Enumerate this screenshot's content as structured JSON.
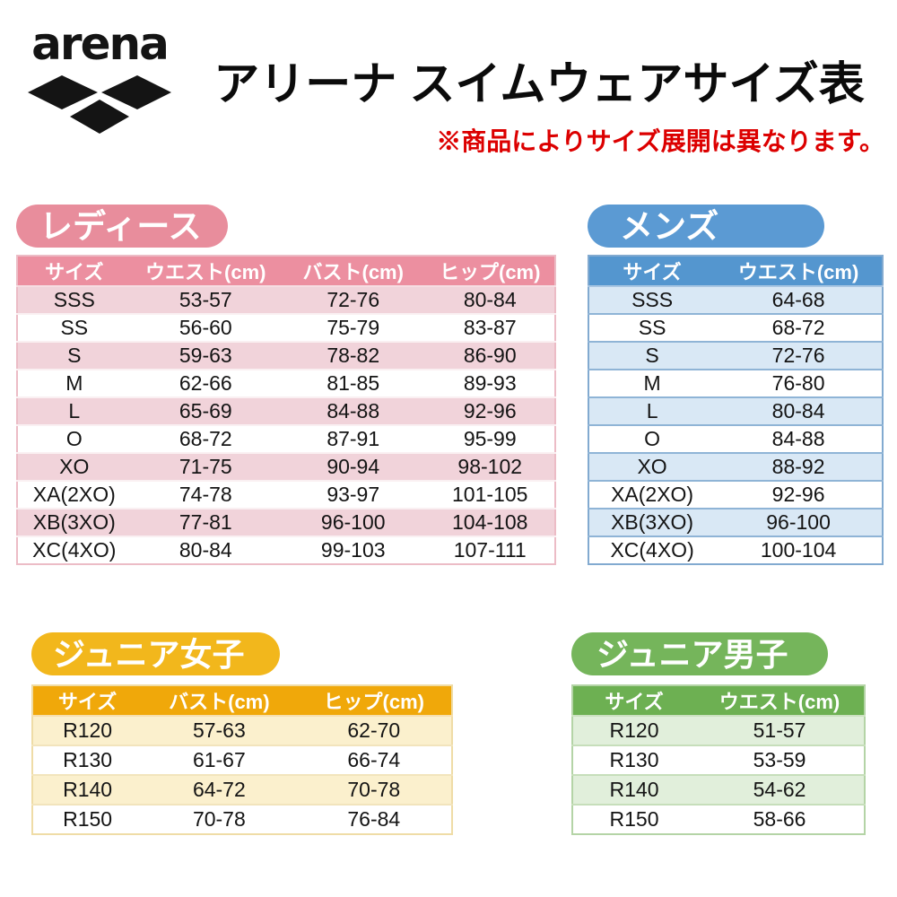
{
  "header": {
    "logo_text": "arena",
    "title": "アリーナ スイムウェアサイズ表",
    "note": "※商品によりサイズ展開は異なります。"
  },
  "colors": {
    "note_red": "#dc0000",
    "ladies_pink": "#ec8fa0",
    "ladies_row_pink": "#f1d3da",
    "mens_blue": "#5b9ad3",
    "mens_row_blue": "#d9e8f5",
    "junior_girls_yellow": "#f0a80a",
    "junior_girls_row_cream": "#fbf0cd",
    "junior_boys_green": "#6db052",
    "junior_boys_row_green": "#e1efdb",
    "logo_black": "#141414"
  },
  "sections": {
    "ladies": {
      "tab": "レディース",
      "columns": [
        "サイズ",
        "ウエスト(cm)",
        "バスト(cm)",
        "ヒップ(cm)"
      ],
      "rows": [
        [
          "SSS",
          "53-57",
          "72-76",
          "80-84"
        ],
        [
          "SS",
          "56-60",
          "75-79",
          "83-87"
        ],
        [
          "S",
          "59-63",
          "78-82",
          "86-90"
        ],
        [
          "M",
          "62-66",
          "81-85",
          "89-93"
        ],
        [
          "L",
          "65-69",
          "84-88",
          "92-96"
        ],
        [
          "O",
          "68-72",
          "87-91",
          "95-99"
        ],
        [
          "XO",
          "71-75",
          "90-94",
          "98-102"
        ],
        [
          "XA(2XO)",
          "74-78",
          "93-97",
          "101-105"
        ],
        [
          "XB(3XO)",
          "77-81",
          "96-100",
          "104-108"
        ],
        [
          "XC(4XO)",
          "80-84",
          "99-103",
          "107-111"
        ]
      ]
    },
    "mens": {
      "tab": "メンズ",
      "columns": [
        "サイズ",
        "ウエスト(cm)"
      ],
      "rows": [
        [
          "SSS",
          "64-68"
        ],
        [
          "SS",
          "68-72"
        ],
        [
          "S",
          "72-76"
        ],
        [
          "M",
          "76-80"
        ],
        [
          "L",
          "80-84"
        ],
        [
          "O",
          "84-88"
        ],
        [
          "XO",
          "88-92"
        ],
        [
          "XA(2XO)",
          "92-96"
        ],
        [
          "XB(3XO)",
          "96-100"
        ],
        [
          "XC(4XO)",
          "100-104"
        ]
      ]
    },
    "junior_girls": {
      "tab": "ジュニア女子",
      "columns": [
        "サイズ",
        "バスト(cm)",
        "ヒップ(cm)"
      ],
      "rows": [
        [
          "R120",
          "57-63",
          "62-70"
        ],
        [
          "R130",
          "61-67",
          "66-74"
        ],
        [
          "R140",
          "64-72",
          "70-78"
        ],
        [
          "R150",
          "70-78",
          "76-84"
        ]
      ]
    },
    "junior_boys": {
      "tab": "ジュニア男子",
      "columns": [
        "サイズ",
        "ウエスト(cm)"
      ],
      "rows": [
        [
          "R120",
          "51-57"
        ],
        [
          "R130",
          "53-59"
        ],
        [
          "R140",
          "54-62"
        ],
        [
          "R150",
          "58-66"
        ]
      ]
    }
  }
}
